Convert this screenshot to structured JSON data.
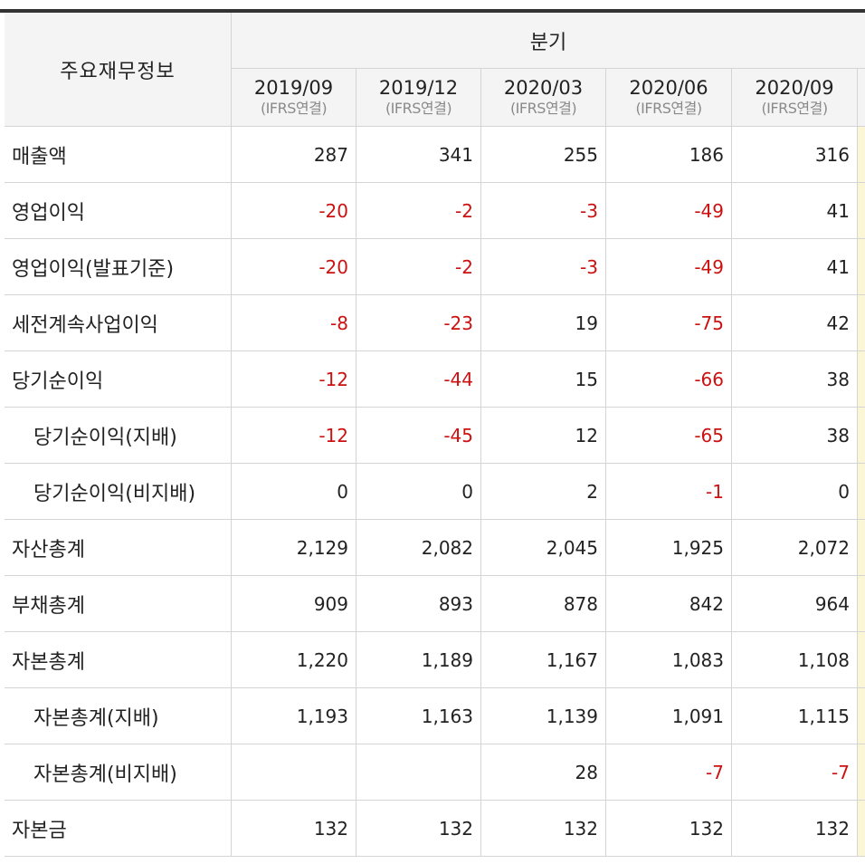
{
  "header": {
    "row_header": "주요재무정보",
    "period_group": "분기",
    "columns": [
      {
        "date": "2019/09",
        "basis": "(IFRS연결)"
      },
      {
        "date": "2019/12",
        "basis": "(IFRS연결)"
      },
      {
        "date": "2020/03",
        "basis": "(IFRS연결)"
      },
      {
        "date": "2020/06",
        "basis": "(IFRS연결)"
      },
      {
        "date": "2020/09",
        "basis": "(IFRS연결)"
      }
    ]
  },
  "rows": [
    {
      "label": "매출액",
      "sub": false,
      "values": [
        "287",
        "341",
        "255",
        "186",
        "316"
      ]
    },
    {
      "label": "영업이익",
      "sub": false,
      "values": [
        "-20",
        "-2",
        "-3",
        "-49",
        "41"
      ]
    },
    {
      "label": "영업이익(발표기준)",
      "sub": false,
      "values": [
        "-20",
        "-2",
        "-3",
        "-49",
        "41"
      ]
    },
    {
      "label": "세전계속사업이익",
      "sub": false,
      "values": [
        "-8",
        "-23",
        "19",
        "-75",
        "42"
      ]
    },
    {
      "label": "당기순이익",
      "sub": false,
      "values": [
        "-12",
        "-44",
        "15",
        "-66",
        "38"
      ]
    },
    {
      "label": "당기순이익(지배)",
      "sub": true,
      "values": [
        "-12",
        "-45",
        "12",
        "-65",
        "38"
      ]
    },
    {
      "label": "당기순이익(비지배)",
      "sub": true,
      "values": [
        "0",
        "0",
        "2",
        "-1",
        "0"
      ]
    },
    {
      "label": "자산총계",
      "sub": false,
      "values": [
        "2,129",
        "2,082",
        "2,045",
        "1,925",
        "2,072"
      ]
    },
    {
      "label": "부채총계",
      "sub": false,
      "values": [
        "909",
        "893",
        "878",
        "842",
        "964"
      ]
    },
    {
      "label": "자본총계",
      "sub": false,
      "values": [
        "1,220",
        "1,189",
        "1,167",
        "1,083",
        "1,108"
      ]
    },
    {
      "label": "자본총계(지배)",
      "sub": true,
      "values": [
        "1,193",
        "1,163",
        "1,139",
        "1,091",
        "1,115"
      ]
    },
    {
      "label": "자본총계(비지배)",
      "sub": true,
      "values": [
        "",
        "",
        "28",
        "-7",
        "-7"
      ]
    },
    {
      "label": "자본금",
      "sub": false,
      "values": [
        "132",
        "132",
        "132",
        "132",
        "132"
      ]
    }
  ],
  "colors": {
    "negative": "#cc1111",
    "header_bg": "#f4f4f4",
    "highlight_col": "#fbf6d6"
  }
}
